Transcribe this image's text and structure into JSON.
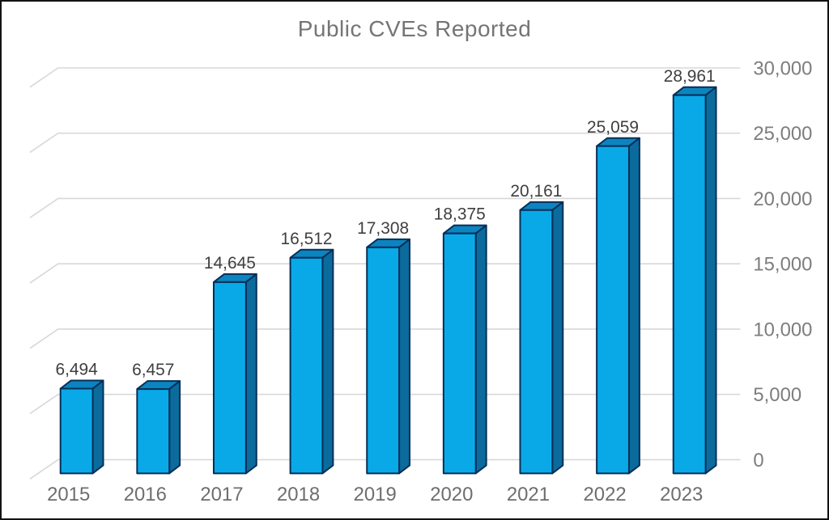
{
  "chart_data": {
    "type": "bar",
    "style": "3d",
    "title": "Public CVEs Reported",
    "categories": [
      "2015",
      "2016",
      "2017",
      "2018",
      "2019",
      "2020",
      "2021",
      "2022",
      "2023"
    ],
    "values": [
      6494,
      6457,
      14645,
      16512,
      17308,
      18375,
      20161,
      25059,
      28961
    ],
    "value_labels": [
      "6,494",
      "6,457",
      "14,645",
      "16,512",
      "17,308",
      "18,375",
      "20,161",
      "25,059",
      "28,961"
    ],
    "xlabel": "",
    "ylabel": "",
    "ylim": [
      0,
      30000
    ],
    "ytick_step": 5000,
    "ytick_labels": [
      "0",
      "5,000",
      "10,000",
      "15,000",
      "20,000",
      "25,000",
      "30,000"
    ],
    "grid": true,
    "axis_side": "right",
    "legend": "none",
    "colors": {
      "bar_front": "#09A9E8",
      "bar_top": "#0C84C0",
      "bar_side": "#0B6B9D",
      "bar_outline": "#072F56",
      "gridline": "#D8D8D8",
      "title_text": "#757575",
      "tick_text": "#7D7D7D",
      "value_text": "#3F3F3F",
      "category_text": "#6E6E6E"
    }
  }
}
